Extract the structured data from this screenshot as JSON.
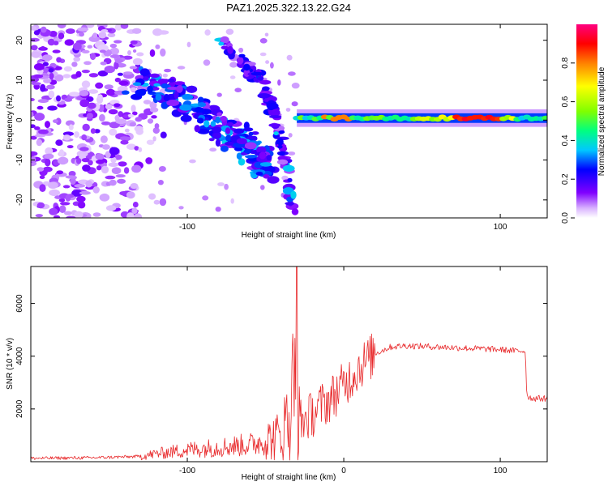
{
  "figure": {
    "title": "PAZ1.2025.322.13.22.G24"
  },
  "chart_data": [
    {
      "type": "heatmap",
      "title": "PAZ1.2025.322.13.22.G24",
      "xlabel": "Height of straight line (km)",
      "ylabel": "Frequency (Hz)",
      "xlim": [
        -200,
        130
      ],
      "ylim": [
        -24.5,
        24
      ],
      "xticks": [
        -100,
        100
      ],
      "yticks": [
        20,
        10,
        0,
        -10,
        -20
      ],
      "colorbar": {
        "label": "Normalized spectral amplitude",
        "range": [
          0,
          1
        ],
        "ticks": [
          0.0,
          0.2,
          0.4,
          0.6,
          0.8
        ],
        "colors": [
          "#ffffff",
          "#d9b3ff",
          "#8000ff",
          "#0000ff",
          "#00c8ff",
          "#00ff80",
          "#80ff00",
          "#ffff00",
          "#ff8000",
          "#ff0000",
          "#ff0080"
        ]
      },
      "features": [
        {
          "name": "noise field",
          "x": [
            -200,
            -130
          ],
          "y": [
            -24.5,
            24
          ],
          "amplitude": 0.15
        },
        {
          "name": "main descending track",
          "points": [
            [
              -135,
              10
            ],
            [
              -110,
              7
            ],
            [
              -95,
              3
            ],
            [
              -80,
              -2
            ],
            [
              -65,
              -5
            ],
            [
              -55,
              -9
            ],
            [
              -48,
              -12
            ]
          ],
          "amplitude": 0.35
        },
        {
          "name": "upper curved track",
          "points": [
            [
              -78,
              20
            ],
            [
              -65,
              15
            ],
            [
              -52,
              9
            ],
            [
              -45,
              2
            ],
            [
              -40,
              -6
            ],
            [
              -36,
              -14
            ],
            [
              -33,
              -22
            ]
          ],
          "amplitude": 0.25
        },
        {
          "name": "constant frequency band",
          "x": [
            -30,
            130
          ],
          "y": 0.5,
          "amplitude": 0.9,
          "peak_x": [
            70,
            100
          ]
        }
      ]
    },
    {
      "type": "line",
      "xlabel": "Height of straight line (km)",
      "ylabel": "SNR (10 * v/v)",
      "xlim": [
        -200,
        130
      ],
      "ylim": [
        0,
        7400
      ],
      "xticks": [
        -100,
        0,
        100
      ],
      "yticks": [
        2000,
        4000,
        6000
      ],
      "series": [
        {
          "name": "SNR",
          "color": "#e8292b",
          "x": [
            -200,
            -160,
            -130,
            -120,
            -100,
            -80,
            -60,
            -50,
            -40,
            -35,
            -32,
            -30,
            -25,
            -20,
            -15,
            -10,
            -5,
            0,
            10,
            20,
            30,
            40,
            60,
            80,
            100,
            110,
            116,
            117,
            120,
            130
          ],
          "values": [
            130,
            150,
            200,
            300,
            450,
            550,
            650,
            800,
            1000,
            1800,
            2200,
            1500,
            1600,
            1800,
            2100,
            2300,
            2600,
            2900,
            3600,
            4100,
            4350,
            4400,
            4350,
            4300,
            4250,
            4200,
            4200,
            2500,
            2400,
            2400
          ],
          "spike": {
            "x": -30,
            "value": 7400
          }
        }
      ]
    }
  ]
}
